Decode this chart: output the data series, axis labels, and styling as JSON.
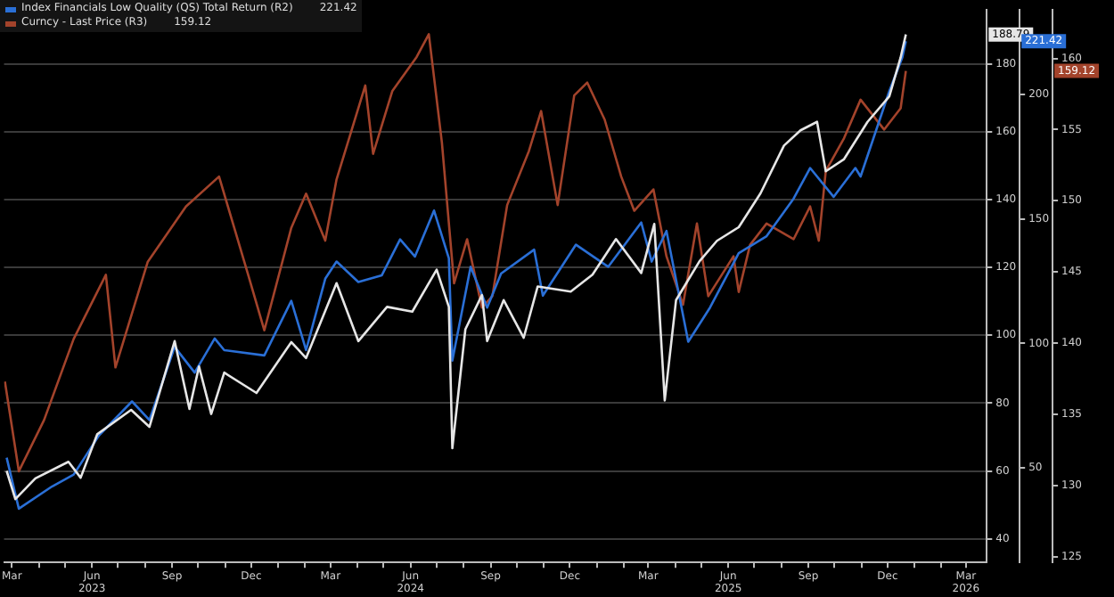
{
  "chart_data": {
    "type": "line",
    "legend": "top left",
    "grid": "y",
    "marker": "none",
    "line_style": "solid",
    "xlim": [
      "2023-02-20",
      "2026-03-25"
    ],
    "xticks": [
      {
        "value": "2023-03-01",
        "label": "Mar"
      },
      {
        "value": "2023-04-01",
        "label": null
      },
      {
        "value": "2023-05-01",
        "label": null
      },
      {
        "value": "2023-06-01",
        "label": "Jun 2023"
      },
      {
        "value": "2023-07-01",
        "label": null
      },
      {
        "value": "2023-08-01",
        "label": null
      },
      {
        "value": "2023-09-01",
        "label": "Sep"
      },
      {
        "value": "2023-10-01",
        "label": null
      },
      {
        "value": "2023-11-01",
        "label": null
      },
      {
        "value": "2023-12-01",
        "label": "Dec"
      },
      {
        "value": "2024-01-01",
        "label": null
      },
      {
        "value": "2024-02-01",
        "label": null
      },
      {
        "value": "2024-03-01",
        "label": "Mar"
      },
      {
        "value": "2024-04-01",
        "label": null
      },
      {
        "value": "2024-05-01",
        "label": null
      },
      {
        "value": "2024-06-01",
        "label": "Jun 2024"
      },
      {
        "value": "2024-07-01",
        "label": null
      },
      {
        "value": "2024-08-01",
        "label": null
      },
      {
        "value": "2024-09-01",
        "label": "Sep"
      },
      {
        "value": "2024-10-01",
        "label": null
      },
      {
        "value": "2024-11-01",
        "label": null
      },
      {
        "value": "2024-12-01",
        "label": "Dec"
      },
      {
        "value": "2025-01-01",
        "label": null
      },
      {
        "value": "2025-02-01",
        "label": null
      },
      {
        "value": "2025-03-01",
        "label": "Mar"
      },
      {
        "value": "2025-04-01",
        "label": null
      },
      {
        "value": "2025-05-01",
        "label": null
      },
      {
        "value": "2025-06-01",
        "label": "Jun 2025"
      },
      {
        "value": "2025-07-01",
        "label": null
      },
      {
        "value": "2025-08-01",
        "label": null
      },
      {
        "value": "2025-09-01",
        "label": "Sep"
      },
      {
        "value": "2025-10-01",
        "label": null
      },
      {
        "value": "2025-11-01",
        "label": null
      },
      {
        "value": "2025-12-01",
        "label": "Dec"
      },
      {
        "value": "2026-01-01",
        "label": null
      },
      {
        "value": "2026-02-01",
        "label": null
      },
      {
        "value": "2026-03-01",
        "label": "Mar 2026"
      }
    ],
    "ylim": [
      33,
      196
    ],
    "yticks": [
      40,
      60,
      80,
      100,
      120,
      140,
      160,
      180
    ],
    "y2lim": [
      12,
      234
    ],
    "y2ticks": [
      50,
      100,
      150,
      200
    ],
    "y3lim": [
      124.6,
      163.4
    ],
    "y3ticks": [
      125,
      130,
      135,
      140,
      145,
      150,
      155,
      160
    ],
    "annotations": [
      "188.79",
      "221.42",
      "159.12"
    ],
    "series": [
      {
        "color": "#e6e6e6",
        "x": [
          "2023-02-23",
          "2023-03-05",
          "2023-03-28",
          "2023-05-05",
          "2023-05-19",
          "2023-06-07",
          "2023-07-16",
          "2023-08-06",
          "2023-09-04",
          "2023-09-21",
          "2023-10-02",
          "2023-10-16",
          "2023-10-31",
          "2023-12-07",
          "2024-01-16",
          "2024-02-02",
          "2024-03-08",
          "2024-04-02",
          "2024-05-05",
          "2024-06-03",
          "2024-07-01",
          "2024-07-15",
          "2024-07-19",
          "2024-08-03",
          "2024-08-22",
          "2024-08-28",
          "2024-09-16",
          "2024-10-09",
          "2024-10-25",
          "2024-12-02",
          "2024-12-27",
          "2025-01-23",
          "2025-02-21",
          "2025-03-08",
          "2025-03-20",
          "2025-04-02",
          "2025-04-29",
          "2025-05-19",
          "2025-06-13",
          "2025-07-08",
          "2025-08-04",
          "2025-08-23",
          "2025-09-11",
          "2025-09-21",
          "2025-10-12",
          "2025-11-08",
          "2025-12-03",
          "2025-12-16",
          "2025-12-22"
        ],
        "values": [
          60,
          51.7,
          57.8,
          62.7,
          58,
          70.8,
          78,
          73,
          98.3,
          78.3,
          90.8,
          76.8,
          89,
          83,
          98,
          93.3,
          115.4,
          98.3,
          108.4,
          107,
          119.4,
          108.4,
          66.7,
          101.8,
          111.9,
          98.3,
          110.4,
          99.3,
          114.4,
          112.9,
          117.9,
          128.4,
          118.4,
          132.9,
          80.8,
          110.4,
          121.9,
          127.9,
          131.9,
          141.9,
          156,
          160.5,
          163,
          148.4,
          152,
          163,
          170.5,
          182,
          188.79
        ]
      },
      {
        "name": "Index Financials Low Quality (QS) Total Return (R2)",
        "color": "#2a6fd6",
        "axis": "y2",
        "x": [
          "2023-02-23",
          "2023-03-09",
          "2023-04-16",
          "2023-05-11",
          "2023-06-09",
          "2023-07-17",
          "2023-08-06",
          "2023-09-04",
          "2023-09-27",
          "2023-10-20",
          "2023-10-31",
          "2023-12-16",
          "2024-01-16",
          "2024-02-02",
          "2024-02-24",
          "2024-03-08",
          "2024-04-02",
          "2024-04-29",
          "2024-05-20",
          "2024-06-06",
          "2024-06-28",
          "2024-07-15",
          "2024-07-19",
          "2024-08-09",
          "2024-08-28",
          "2024-09-13",
          "2024-10-21",
          "2024-10-31",
          "2024-12-08",
          "2025-01-14",
          "2025-02-21",
          "2025-03-05",
          "2025-03-22",
          "2025-04-16",
          "2025-05-11",
          "2025-06-13",
          "2025-07-15",
          "2025-08-15",
          "2025-09-03",
          "2025-09-30",
          "2025-10-25",
          "2025-10-31",
          "2025-12-03",
          "2025-12-18",
          "2025-12-22"
        ],
        "values": [
          54.1,
          33.6,
          42.5,
          47.3,
          63,
          76.7,
          69.2,
          98.6,
          88.3,
          102,
          97.3,
          95.2,
          117.1,
          97.3,
          126,
          132.9,
          124.7,
          127.4,
          141.8,
          134.9,
          153.4,
          134.2,
          93.1,
          130.8,
          114.4,
          128.1,
          137.7,
          119.2,
          139.7,
          130.8,
          148.6,
          132.9,
          145.2,
          100.7,
          114.4,
          136.3,
          143.1,
          158.2,
          170.5,
          158.9,
          170.5,
          167.1,
          201.4,
          215,
          221.42
        ]
      },
      {
        "name": "Curncy - Last Price (R3)",
        "color": "#a3432b",
        "axis": "y3",
        "x": [
          "2023-02-21",
          "2023-03-09",
          "2023-04-07",
          "2023-05-11",
          "2023-06-17",
          "2023-06-28",
          "2023-08-04",
          "2023-09-17",
          "2023-10-25",
          "2023-11-27",
          "2023-12-16",
          "2024-01-16",
          "2024-02-02",
          "2024-02-24",
          "2024-03-08",
          "2024-04-10",
          "2024-04-19",
          "2024-05-11",
          "2024-06-08",
          "2024-06-22",
          "2024-07-07",
          "2024-07-21",
          "2024-08-05",
          "2024-08-22",
          "2024-09-03",
          "2024-09-20",
          "2024-10-15",
          "2024-10-29",
          "2024-11-17",
          "2024-12-06",
          "2024-12-21",
          "2025-01-10",
          "2025-01-29",
          "2025-02-13",
          "2025-03-07",
          "2025-03-22",
          "2025-04-10",
          "2025-04-26",
          "2025-05-09",
          "2025-06-07",
          "2025-06-13",
          "2025-06-26",
          "2025-07-15",
          "2025-08-15",
          "2025-09-03",
          "2025-09-13",
          "2025-09-21",
          "2025-10-12",
          "2025-10-31",
          "2025-11-27",
          "2025-12-16",
          "2025-12-22"
        ],
        "values": [
          137.3,
          131,
          134.6,
          140.3,
          144.8,
          138.3,
          145.7,
          149.6,
          151.7,
          144.9,
          140.9,
          148.1,
          150.5,
          147.2,
          151.5,
          158.1,
          153.3,
          157.7,
          160.1,
          161.7,
          154.1,
          144.2,
          147.3,
          142.5,
          143.3,
          149.7,
          153.5,
          156.3,
          149.7,
          157.4,
          158.3,
          155.7,
          151.7,
          149.3,
          150.8,
          146.1,
          142.7,
          148.4,
          143.3,
          146.1,
          143.6,
          146.9,
          148.4,
          147.3,
          149.6,
          147.2,
          152.1,
          154.4,
          157.1,
          155,
          156.5,
          159.12
        ]
      }
    ]
  }
}
